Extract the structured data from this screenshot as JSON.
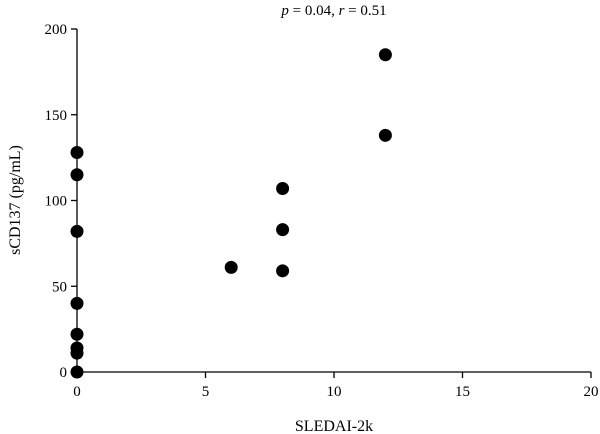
{
  "chart_data": {
    "type": "scatter",
    "title_parts": {
      "p_symbol": "p",
      "p_value": " = 0.04, ",
      "r_symbol": "r",
      "r_value": " = 0.51"
    },
    "xlabel": "SLEDAI-2k",
    "ylabel": "sCD137 (pg/mL)",
    "xlim": [
      0,
      20
    ],
    "ylim": [
      0,
      200
    ],
    "xticks": [
      0,
      5,
      10,
      15,
      20
    ],
    "yticks": [
      0,
      50,
      100,
      150,
      200
    ],
    "grid": false,
    "series": [
      {
        "points": [
          {
            "x": 0,
            "y": 128
          },
          {
            "x": 0,
            "y": 115
          },
          {
            "x": 0,
            "y": 82
          },
          {
            "x": 0,
            "y": 40
          },
          {
            "x": 0,
            "y": 22
          },
          {
            "x": 0,
            "y": 14
          },
          {
            "x": 0,
            "y": 11
          },
          {
            "x": 0,
            "y": 0
          },
          {
            "x": 6,
            "y": 61
          },
          {
            "x": 8,
            "y": 107
          },
          {
            "x": 8,
            "y": 83
          },
          {
            "x": 8,
            "y": 59
          },
          {
            "x": 12,
            "y": 185
          },
          {
            "x": 12,
            "y": 138
          }
        ],
        "color": "#000000"
      }
    ]
  }
}
